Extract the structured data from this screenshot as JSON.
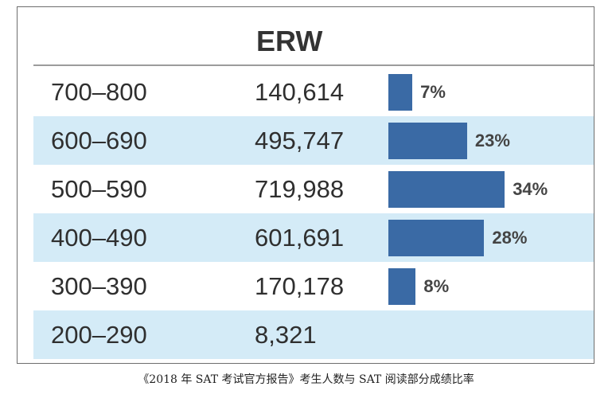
{
  "chart_data": {
    "type": "table",
    "header": "ERW",
    "rows": [
      {
        "range": "700–800",
        "count": "140,614",
        "percent_label": "7%",
        "percent": 7
      },
      {
        "range": "600–690",
        "count": "495,747",
        "percent_label": "23%",
        "percent": 23
      },
      {
        "range": "500–590",
        "count": "719,988",
        "percent_label": "34%",
        "percent": 34
      },
      {
        "range": "400–490",
        "count": "601,691",
        "percent_label": "28%",
        "percent": 28
      },
      {
        "range": "300–390",
        "count": "170,178",
        "percent_label": "8%",
        "percent": 8
      },
      {
        "range": "200–290",
        "count": "8,321",
        "percent_label": "",
        "percent": 0
      }
    ]
  },
  "caption": "《2018 年 SAT 考试官方报告》考生人数与 SAT 阅读部分成绩比率",
  "colors": {
    "bar": "#3a6aa5",
    "stripe": "#d4ebf7"
  }
}
